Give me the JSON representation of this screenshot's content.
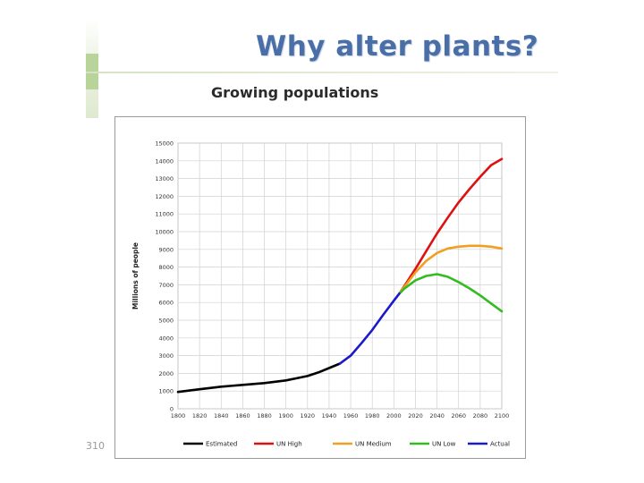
{
  "slide": {
    "title": "Why alter plants?",
    "subtitle": "Growing populations",
    "page_number": "310"
  },
  "chart_data": {
    "type": "line",
    "title": "",
    "xlabel": "",
    "ylabel": "Millions of people",
    "xlim": [
      1800,
      2100
    ],
    "ylim": [
      0,
      15000
    ],
    "x_ticks": [
      1800,
      1820,
      1840,
      1860,
      1880,
      1900,
      1920,
      1940,
      1960,
      1980,
      2000,
      2020,
      2040,
      2060,
      2080,
      2100
    ],
    "y_ticks": [
      0,
      1000,
      2000,
      3000,
      4000,
      5000,
      6000,
      7000,
      8000,
      9000,
      10000,
      11000,
      12000,
      13000,
      14000,
      15000
    ],
    "grid": true,
    "legend_position": "bottom",
    "series": [
      {
        "name": "Estimated",
        "color": "#000000",
        "points": [
          [
            1800,
            950
          ],
          [
            1820,
            1100
          ],
          [
            1840,
            1250
          ],
          [
            1860,
            1350
          ],
          [
            1880,
            1450
          ],
          [
            1900,
            1600
          ],
          [
            1910,
            1720
          ],
          [
            1920,
            1850
          ],
          [
            1930,
            2050
          ],
          [
            1940,
            2300
          ],
          [
            1950,
            2550
          ]
        ]
      },
      {
        "name": "UN High",
        "color": "#dd1111",
        "points": [
          [
            2005,
            6500
          ],
          [
            2010,
            6950
          ],
          [
            2020,
            7900
          ],
          [
            2030,
            8900
          ],
          [
            2040,
            9900
          ],
          [
            2050,
            10800
          ],
          [
            2060,
            11650
          ],
          [
            2070,
            12400
          ],
          [
            2080,
            13100
          ],
          [
            2090,
            13750
          ],
          [
            2100,
            14100
          ]
        ]
      },
      {
        "name": "UN Medium",
        "color": "#f0a020",
        "points": [
          [
            2005,
            6500
          ],
          [
            2010,
            6900
          ],
          [
            2020,
            7700
          ],
          [
            2030,
            8350
          ],
          [
            2040,
            8800
          ],
          [
            2050,
            9050
          ],
          [
            2060,
            9150
          ],
          [
            2070,
            9200
          ],
          [
            2080,
            9200
          ],
          [
            2090,
            9150
          ],
          [
            2100,
            9050
          ]
        ]
      },
      {
        "name": "UN Low",
        "color": "#33bb22",
        "points": [
          [
            2005,
            6500
          ],
          [
            2010,
            6800
          ],
          [
            2020,
            7250
          ],
          [
            2030,
            7500
          ],
          [
            2040,
            7600
          ],
          [
            2050,
            7450
          ],
          [
            2060,
            7150
          ],
          [
            2070,
            6800
          ],
          [
            2080,
            6400
          ],
          [
            2090,
            5950
          ],
          [
            2100,
            5500
          ]
        ]
      },
      {
        "name": "Actual",
        "color": "#1a1acc",
        "points": [
          [
            1950,
            2550
          ],
          [
            1960,
            3000
          ],
          [
            1970,
            3700
          ],
          [
            1980,
            4450
          ],
          [
            1990,
            5300
          ],
          [
            2000,
            6100
          ],
          [
            2005,
            6500
          ]
        ]
      }
    ]
  }
}
